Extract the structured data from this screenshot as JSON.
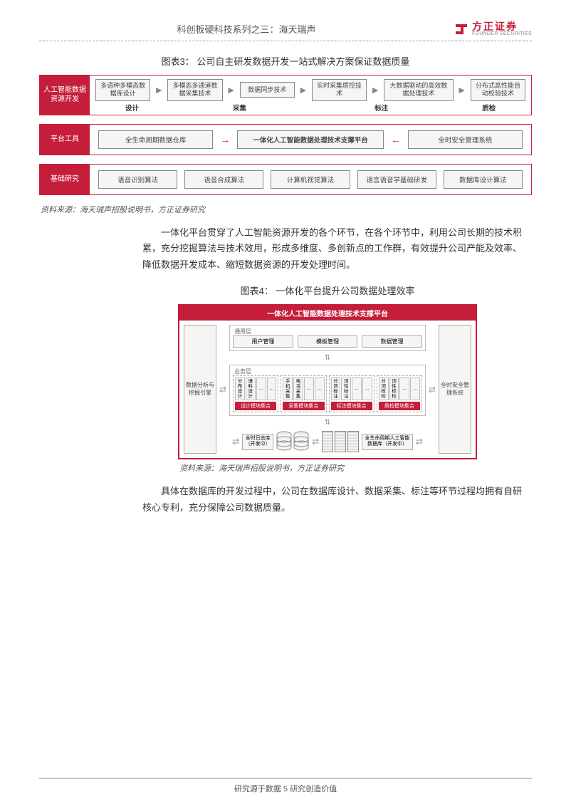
{
  "header": {
    "title": "科创板硬科技系列之三：海天瑞声",
    "logo_cn": "方正证券",
    "logo_en": "FOUNDER SECURITIES",
    "brand_color": "#c41e3a"
  },
  "figure3": {
    "title": "图表3：  公司自主研发数据开发一站式解决方案保证数据质量",
    "row1": {
      "label": "人工智能数据资源开发",
      "boxes": [
        "多语种多模态数据库设计",
        "多模态多通道数据采集技术",
        "数据同步技术",
        "实时采集质控技术",
        "大数据驱动的高效数据处理技术",
        "分布式高性能自动校验技术"
      ],
      "stages": [
        "设计",
        "采集",
        "标注",
        "质检"
      ],
      "stage_widths": [
        "17%",
        "33%",
        "33%",
        "17%"
      ]
    },
    "row2": {
      "label": "平台工具",
      "left": "全生命周期数据仓库",
      "center": "一体化人工智能数据处理技术支撑平台",
      "right": "全时安全管理系统"
    },
    "row3": {
      "label": "基础研究",
      "boxes": [
        "语音识别算法",
        "语音合成算法",
        "计算机视觉算法",
        "语言语音学基础研发",
        "数据库设计算法"
      ]
    },
    "source": "资料来源：海天瑞声招股说明书，方正证券研究"
  },
  "para1": "一体化平台贯穿了人工智能资源开发的各个环节，在各个环节中，利用公司长期的技术积累，充分挖掘算法与技术效用，形成多维度、多创新点的工作群，有效提升公司产能及效率、降低数据开发成本、缩短数据资源的开发处理时间。",
  "figure4": {
    "title": "图表4：  一体化平台提升公司数据处理效率",
    "banner": "一体化人工智能数据处理技术支撑平台",
    "left_side": "数据分析与挖掘引擎",
    "right_side": "全时安全管理系统",
    "section_top": "通用层",
    "section_biz": "业务层",
    "top_boxes": [
      "用户管理",
      "模板管理",
      "数据管理"
    ],
    "groups": [
      {
        "cells": [
          "分布设计",
          "语料设计",
          "...",
          "..."
        ],
        "foot": "设计模块集合"
      },
      {
        "cells": [
          "手机采集",
          "电话采集",
          "...",
          "..."
        ],
        "foot": "采集模块集合"
      },
      {
        "cells": [
          "分词标注",
          "词性标注",
          "...",
          "..."
        ],
        "foot": "标注模块集合"
      },
      {
        "cells": [
          "分词校检",
          "词性校检",
          "...",
          "..."
        ],
        "foot": "质检模块集合"
      }
    ],
    "bottom_left": "全时日志库（开发中）",
    "bottom_right": "全生命周期人工智能数据库（开发中）",
    "source": "资料来源：海天瑞声招股说明书，方正证券研究"
  },
  "para2": "具体在数据库的开发过程中，公司在数据库设计、数据采集、标注等环节过程均拥有自研核心专利，充分保障公司数据质量。",
  "footer": "研究源于数据 5 研究创造价值",
  "colors": {
    "brand_red": "#c41e3a",
    "box_bg": "#f5f5f3",
    "box_border": "#888888",
    "text": "#333333",
    "muted": "#666666"
  }
}
